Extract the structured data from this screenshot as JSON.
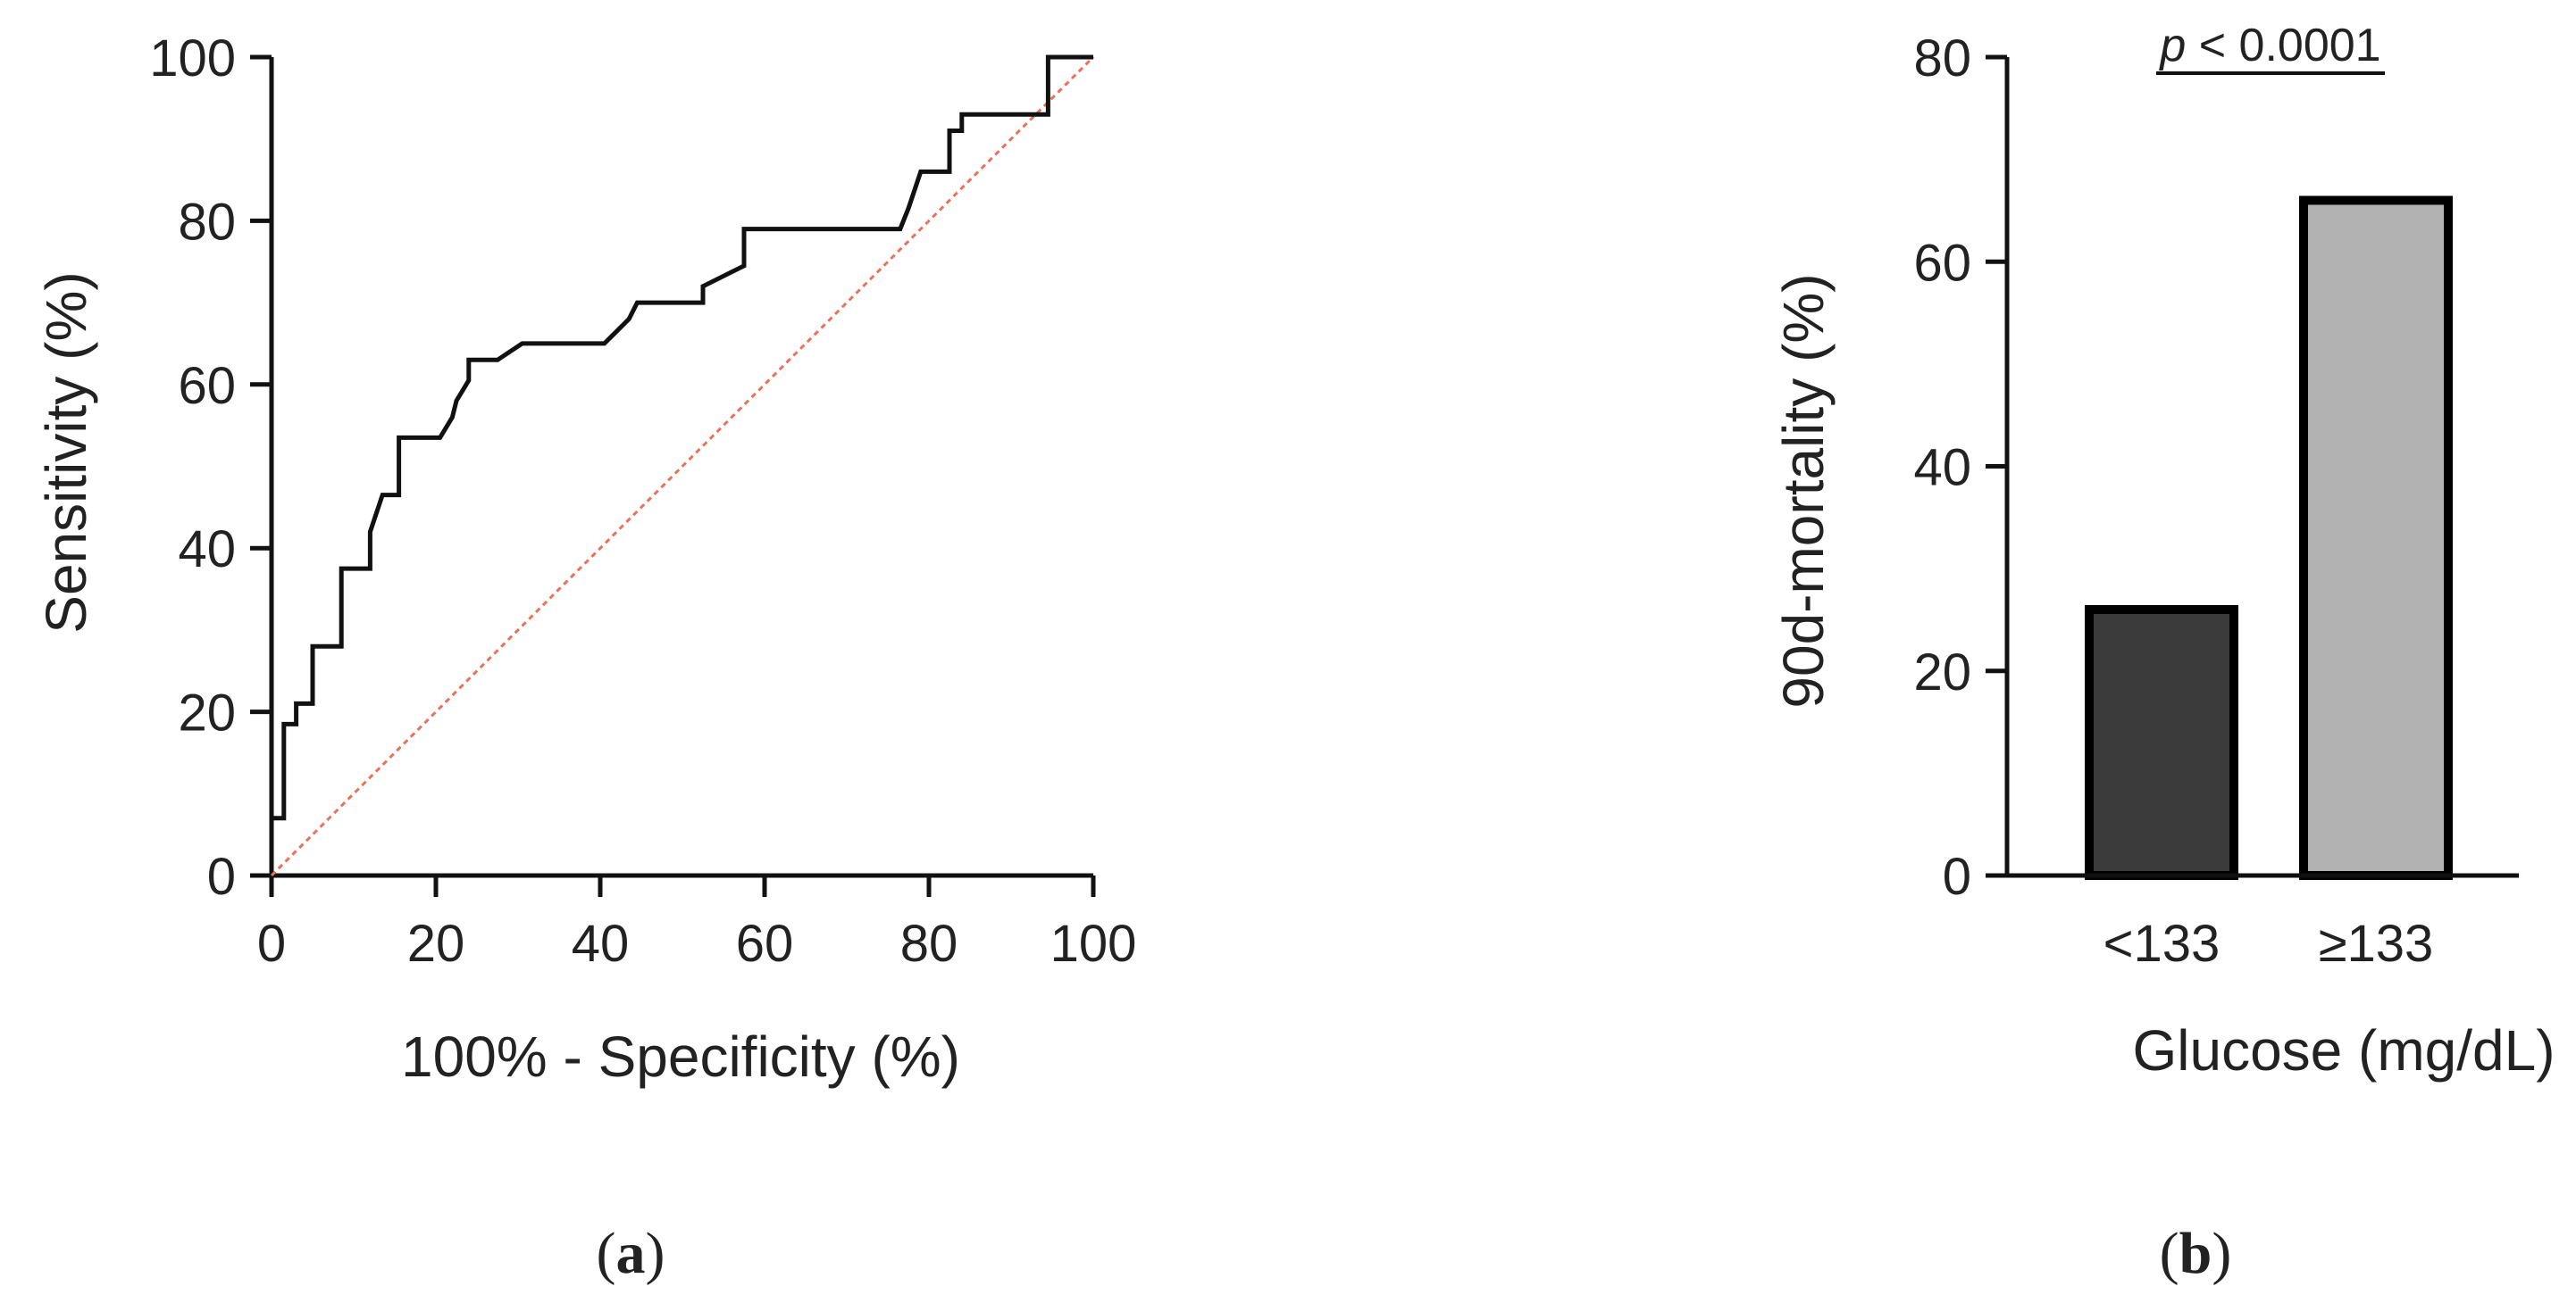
{
  "chart_data": [
    {
      "type": "line",
      "panel_label_open": "(",
      "panel_label": "a",
      "panel_label_close": ")",
      "xlabel": "100% - Specificity (%)",
      "ylabel": "Sensitivity (%)",
      "xlim": [
        0,
        100
      ],
      "ylim": [
        0,
        100
      ],
      "xticks": [
        0,
        20,
        40,
        60,
        80,
        100
      ],
      "yticks": [
        0,
        20,
        40,
        60,
        80,
        100
      ],
      "series": [
        {
          "name": "ROC curve",
          "color": "#111111",
          "x": [
            0,
            0,
            1.5,
            1.5,
            3,
            3,
            5,
            5,
            8.5,
            8.5,
            12,
            12,
            13.5,
            15.5,
            15.5,
            20.5,
            22,
            22.5,
            24,
            24,
            27.5,
            30.5,
            40.5,
            42,
            43.5,
            44.5,
            52.5,
            52.5,
            57.5,
            57.5,
            76.5,
            77.5,
            79,
            79,
            82.5,
            82.5,
            84,
            84,
            85,
            85,
            94.5,
            94.5,
            100
          ],
          "y": [
            7,
            7,
            7,
            18.5,
            18.5,
            21,
            21,
            28,
            28,
            37.5,
            37.5,
            42,
            46.5,
            46.5,
            53.5,
            53.5,
            56,
            58,
            60.5,
            63,
            63,
            65,
            65,
            66.5,
            68,
            70,
            70,
            72,
            74.5,
            79,
            79,
            81.5,
            86,
            86,
            86,
            91,
            91,
            93,
            93,
            93,
            93,
            100,
            100
          ]
        },
        {
          "name": "Reference line",
          "color": "#e8735a",
          "x": [
            0,
            100
          ],
          "y": [
            0,
            100
          ]
        }
      ]
    },
    {
      "type": "bar",
      "panel_label_open": "(",
      "panel_label": "b",
      "panel_label_close": ")",
      "xlabel": "Glucose (mg/dL)",
      "ylabel": "90d-mortality (%)",
      "categories": [
        "<133",
        "≥133"
      ],
      "values": [
        26,
        66
      ],
      "colors": [
        "#3b3b3b",
        "#b2b2b2"
      ],
      "ylim": [
        0,
        80
      ],
      "yticks": [
        0,
        20,
        40,
        60,
        80
      ],
      "annotation": {
        "prefix": "p",
        "value": " < 0.0001",
        "spans": [
          "<133",
          "≥133"
        ]
      }
    }
  ]
}
